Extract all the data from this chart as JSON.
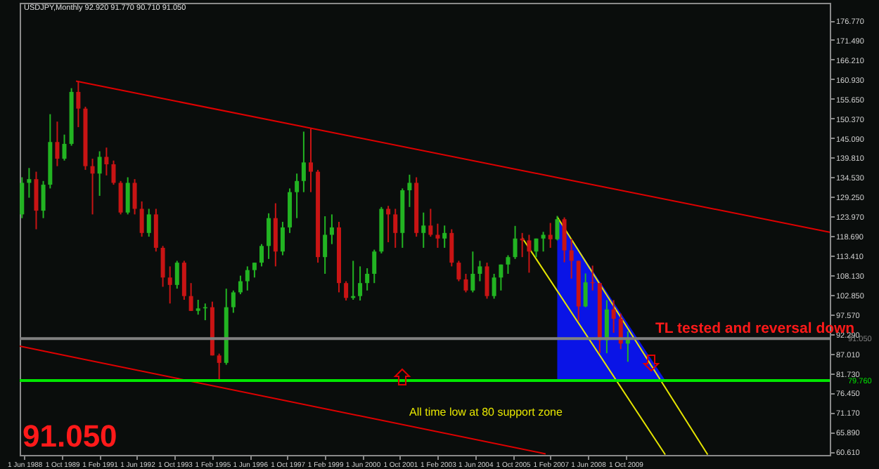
{
  "chart_data": {
    "type": "candlestick",
    "title": "USDJPY,Monthly  92.920 91.770 90.710 91.050",
    "x": [
      "1988-05",
      "1988-08",
      "1988-11",
      "1989-02",
      "1989-05",
      "1989-08",
      "1989-11",
      "1990-02",
      "1990-05",
      "1990-08",
      "1990-11",
      "1991-02",
      "1991-05",
      "1991-08",
      "1991-11",
      "1992-02",
      "1992-05",
      "1992-08",
      "1992-11",
      "1993-02",
      "1993-05",
      "1993-08",
      "1993-11",
      "1994-02",
      "1994-05",
      "1994-08",
      "1994-11",
      "1995-02",
      "1995-05",
      "1995-08",
      "1995-11",
      "1996-02",
      "1996-05",
      "1996-08",
      "1996-11",
      "1997-02",
      "1997-05",
      "1997-08",
      "1997-11",
      "1998-02",
      "1998-05",
      "1998-08",
      "1998-11",
      "1999-02",
      "1999-05",
      "1999-08",
      "1999-11",
      "2000-02",
      "2000-05",
      "2000-08",
      "2000-11",
      "2001-02",
      "2001-05",
      "2001-08",
      "2001-11",
      "2002-02",
      "2002-05",
      "2002-08",
      "2002-11",
      "2003-02",
      "2003-05",
      "2003-08",
      "2003-11",
      "2004-02",
      "2004-05",
      "2004-08",
      "2004-11",
      "2005-02",
      "2005-05",
      "2005-08",
      "2005-11",
      "2006-02",
      "2006-05",
      "2006-08",
      "2006-11",
      "2007-02",
      "2007-05",
      "2007-08",
      "2007-11",
      "2008-02",
      "2008-05",
      "2008-08",
      "2008-11",
      "2009-02",
      "2009-05",
      "2009-08",
      "2009-11"
    ],
    "ohlc": [
      [
        124.5,
        134.5,
        123.5,
        133.0
      ],
      [
        133.0,
        137.0,
        129.0,
        134.0
      ],
      [
        134.0,
        136.0,
        120.5,
        125.5
      ],
      [
        125.5,
        133.5,
        123.5,
        132.5
      ],
      [
        132.5,
        151.5,
        131.5,
        144.0
      ],
      [
        144.0,
        149.5,
        137.5,
        139.5
      ],
      [
        139.5,
        146.0,
        139.0,
        143.5
      ],
      [
        143.5,
        158.5,
        143.0,
        157.5
      ],
      [
        157.5,
        160.4,
        148.0,
        153.0
      ],
      [
        153.0,
        153.5,
        136.5,
        137.5
      ],
      [
        137.5,
        139.5,
        124.5,
        135.5
      ],
      [
        135.5,
        141.5,
        129.5,
        140.0
      ],
      [
        140.0,
        142.5,
        135.0,
        138.0
      ],
      [
        138.0,
        139.0,
        132.5,
        133.0
      ],
      [
        133.0,
        133.5,
        124.5,
        125.0
      ],
      [
        125.0,
        134.5,
        124.5,
        133.0
      ],
      [
        133.0,
        134.0,
        124.5,
        126.0
      ],
      [
        126.0,
        128.0,
        118.5,
        119.5
      ],
      [
        119.5,
        126.0,
        118.5,
        124.5
      ],
      [
        124.5,
        126.0,
        114.5,
        115.5
      ],
      [
        115.5,
        116.0,
        105.0,
        107.5
      ],
      [
        107.5,
        110.5,
        100.5,
        105.5
      ],
      [
        105.5,
        112.0,
        104.5,
        111.5
      ],
      [
        111.5,
        112.0,
        101.5,
        102.5
      ],
      [
        102.5,
        106.0,
        98.5,
        98.5
      ],
      [
        98.5,
        101.5,
        97.5,
        99.2
      ],
      [
        99.2,
        100.5,
        96.0,
        99.5
      ],
      [
        99.5,
        101.0,
        86.5,
        86.5
      ],
      [
        86.5,
        87.0,
        79.75,
        84.5
      ],
      [
        84.5,
        104.5,
        84.0,
        99.5
      ],
      [
        99.5,
        104.0,
        98.0,
        103.5
      ],
      [
        103.5,
        108.0,
        103.0,
        106.5
      ],
      [
        106.5,
        110.5,
        104.0,
        109.5
      ],
      [
        109.5,
        111.5,
        107.5,
        111.5
      ],
      [
        111.5,
        116.5,
        110.5,
        116.0
      ],
      [
        116.0,
        124.8,
        112.5,
        123.5
      ],
      [
        123.5,
        127.5,
        110.5,
        114.5
      ],
      [
        114.5,
        122.5,
        113.5,
        121.0
      ],
      [
        121.0,
        131.5,
        119.5,
        130.5
      ],
      [
        130.5,
        135.5,
        123.5,
        133.5
      ],
      [
        133.5,
        146.8,
        130.5,
        138.5
      ],
      [
        138.5,
        147.6,
        130.5,
        136.0
      ],
      [
        136.0,
        136.5,
        111.5,
        113.0
      ],
      [
        113.0,
        124.0,
        108.5,
        119.0
      ],
      [
        119.0,
        124.5,
        116.5,
        121.0
      ],
      [
        121.0,
        122.5,
        103.5,
        106.0
      ],
      [
        106.0,
        106.5,
        101.3,
        102.0
      ],
      [
        102.0,
        112.0,
        101.5,
        102.5
      ],
      [
        102.5,
        110.5,
        101.3,
        106.0
      ],
      [
        106.0,
        110.0,
        104.0,
        108.5
      ],
      [
        108.5,
        115.0,
        106.0,
        114.5
      ],
      [
        114.5,
        126.5,
        114.0,
        126.0
      ],
      [
        126.0,
        126.8,
        117.0,
        124.5
      ],
      [
        124.5,
        126.0,
        115.5,
        119.5
      ],
      [
        119.5,
        131.5,
        115.5,
        131.0
      ],
      [
        131.0,
        135.2,
        126.5,
        133.0
      ],
      [
        133.0,
        134.5,
        118.5,
        119.5
      ],
      [
        119.5,
        125.0,
        115.5,
        121.5
      ],
      [
        121.5,
        126.0,
        118.5,
        119.0
      ],
      [
        119.0,
        122.0,
        115.5,
        118.0
      ],
      [
        118.0,
        121.5,
        115.5,
        119.5
      ],
      [
        119.5,
        120.5,
        110.5,
        111.5
      ],
      [
        111.5,
        112.0,
        106.5,
        107.0
      ],
      [
        107.0,
        108.5,
        103.5,
        104.0
      ],
      [
        104.0,
        114.5,
        103.5,
        108.5
      ],
      [
        108.5,
        112.0,
        106.5,
        110.5
      ],
      [
        110.5,
        111.5,
        101.8,
        102.5
      ],
      [
        102.5,
        108.5,
        101.8,
        107.5
      ],
      [
        107.5,
        111.0,
        104.0,
        111.0
      ],
      [
        111.0,
        113.5,
        108.5,
        113.0
      ],
      [
        113.0,
        121.4,
        112.5,
        118.0
      ],
      [
        118.0,
        119.5,
        113.0,
        117.5
      ],
      [
        117.5,
        119.0,
        108.8,
        114.5
      ],
      [
        114.5,
        118.0,
        113.0,
        118.0
      ],
      [
        118.0,
        119.8,
        114.5,
        119.0
      ],
      [
        119.0,
        122.2,
        115.5,
        117.8
      ],
      [
        117.8,
        124.1,
        117.5,
        123.2
      ],
      [
        123.2,
        123.7,
        111.6,
        114.8
      ],
      [
        114.8,
        117.9,
        107.2,
        112.0
      ],
      [
        112.0,
        112.0,
        95.8,
        99.7
      ],
      [
        99.7,
        108.6,
        99.5,
        106.2
      ],
      [
        106.2,
        110.7,
        104.0,
        106.0
      ],
      [
        106.0,
        106.0,
        87.1,
        90.6
      ],
      [
        90.6,
        101.4,
        87.1,
        98.9
      ],
      [
        98.9,
        101.4,
        92.6,
        96.4
      ],
      [
        96.4,
        97.8,
        88.2,
        89.7
      ],
      [
        89.7,
        93.0,
        84.8,
        91.05
      ]
    ],
    "series": [
      {
        "type": "area",
        "color": "#0a14e6",
        "x": [
          "2007-05",
          "2011-03"
        ],
        "values": [
          123.8,
          79.8
        ]
      },
      {
        "type": "line",
        "color": "#e00000",
        "x": [
          "1990-04",
          "2017-01"
        ],
        "values": [
          160.4,
          119.7
        ]
      },
      {
        "type": "line",
        "color": "#e00000",
        "x": [
          "1988-04",
          "2006-12"
        ],
        "values": [
          89.0,
          60.0
        ]
      },
      {
        "type": "line",
        "color": "#e6e600",
        "x": [
          "2007-05",
          "2012-09"
        ],
        "values": [
          123.8,
          59.8
        ]
      },
      {
        "type": "line",
        "color": "#e6e600",
        "x": [
          "2006-02",
          "2011-03"
        ],
        "values": [
          118.2,
          59.8
        ]
      }
    ],
    "xlim": [
      "1988-04",
      "2017-01"
    ],
    "xticks": [
      {
        "value": "1988-06",
        "label": "1 Jun 1988"
      },
      {
        "value": "1989-10",
        "label": "1 Oct 1989"
      },
      {
        "value": "1991-02",
        "label": "1 Feb 1991"
      },
      {
        "value": "1992-06",
        "label": "1 Jun 1992"
      },
      {
        "value": "1993-10",
        "label": "1 Oct 1993"
      },
      {
        "value": "1995-02",
        "label": "1 Feb 1995"
      },
      {
        "value": "1996-06",
        "label": "1 Jun 1996"
      },
      {
        "value": "1997-10",
        "label": "1 Oct 1997"
      },
      {
        "value": "1999-02",
        "label": "1 Feb 1999"
      },
      {
        "value": "2000-06",
        "label": "1 Jun 2000"
      },
      {
        "value": "2001-10",
        "label": "1 Oct 2001"
      },
      {
        "value": "2003-02",
        "label": "1 Feb 2003"
      },
      {
        "value": "2004-06",
        "label": "1 Jun 2004"
      },
      {
        "value": "2005-10",
        "label": "1 Oct 2005"
      },
      {
        "value": "2007-02",
        "label": "1 Feb 2007"
      },
      {
        "value": "2008-06",
        "label": "1 Jun 2008"
      },
      {
        "value": "2009-10",
        "label": "1 Oct 2009"
      }
    ],
    "ylim": [
      59.7,
      181.5
    ],
    "yticks": [
      {
        "value": 60.61,
        "label": "60.610"
      },
      {
        "value": 65.89,
        "label": "65.890"
      },
      {
        "value": 71.17,
        "label": "71.170"
      },
      {
        "value": 76.45,
        "label": "76.450"
      },
      {
        "value": 81.73,
        "label": "81.730"
      },
      {
        "value": 87.01,
        "label": "87.010"
      },
      {
        "value": 92.29,
        "label": "92.290"
      },
      {
        "value": 97.57,
        "label": "97.570"
      },
      {
        "value": 102.85,
        "label": "102.850"
      },
      {
        "value": 108.13,
        "label": "108.130"
      },
      {
        "value": 113.41,
        "label": "113.410"
      },
      {
        "value": 118.69,
        "label": "118.690"
      },
      {
        "value": 123.97,
        "label": "123.970"
      },
      {
        "value": 129.25,
        "label": "129.250"
      },
      {
        "value": 134.53,
        "label": "134.530"
      },
      {
        "value": 139.81,
        "label": "139.810"
      },
      {
        "value": 145.09,
        "label": "145.090"
      },
      {
        "value": 150.37,
        "label": "150.370"
      },
      {
        "value": 155.65,
        "label": "155.650"
      },
      {
        "value": 160.93,
        "label": "160.930"
      },
      {
        "value": 166.21,
        "label": "166.210"
      },
      {
        "value": 171.49,
        "label": "171.490"
      },
      {
        "value": 176.77,
        "label": "176.770"
      }
    ],
    "ref_lines": [
      {
        "axis": "y",
        "value": 79.76,
        "label": "79.760",
        "color": "#00e600"
      },
      {
        "axis": "y",
        "value": 91.05,
        "label": "91.050",
        "color": "#808080"
      }
    ],
    "annotations": [
      "TL tested and reversal down",
      "All time low at 80 support zone",
      "91.050"
    ],
    "grid": false
  }
}
